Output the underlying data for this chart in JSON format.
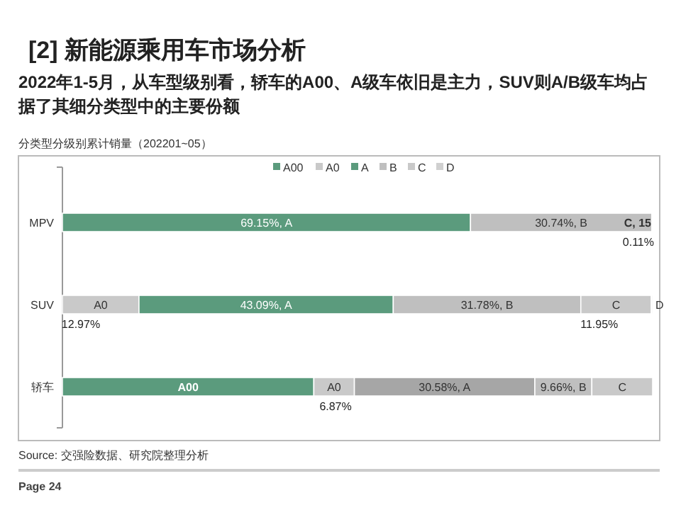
{
  "chart_data": {
    "type": "bar",
    "orientation": "horizontal",
    "stacked": true,
    "legend": "top",
    "title": "[2] 新能源乘用车市场分析",
    "subtitle": "2022年1-5月，从车型级别看，轿车的A00、A级车依旧是主力，SUV则A/B级车均占据了其细分类型中的主要份额",
    "annotations": [
      "分类型分级别累计销量（202201~05）",
      "Source: 交强险数据、研究院整理分析",
      "Page 24"
    ],
    "categories": [
      "MPV",
      "SUV",
      "轿车"
    ],
    "series": [
      {
        "name": "A00",
        "color": "#5b9b7d",
        "values": [
          0,
          0,
          42.6
        ],
        "value_labels": [
          null,
          null,
          "A00"
        ]
      },
      {
        "name": "A0",
        "color": "#c9c9c9",
        "values": [
          0,
          12.97,
          6.87
        ],
        "value_labels": [
          null,
          "A0\n12.97%",
          "A0\n6.87%"
        ]
      },
      {
        "name": "A",
        "color": "#5b9b7d",
        "colors": [
          "#5b9b7d",
          "#5b9b7d",
          "#a6a6a6"
        ],
        "values": [
          69.15,
          43.09,
          30.58
        ],
        "value_labels": [
          "69.15%, A",
          "43.09%, A",
          "30.58%, A"
        ]
      },
      {
        "name": "B",
        "color": "#bfbfbf",
        "values": [
          30.74,
          31.78,
          9.66
        ],
        "value_labels": [
          "30.74%, B",
          "31.78%, B",
          "9.66%, B"
        ]
      },
      {
        "name": "C",
        "color": "#c9c9c9",
        "colors": [
          "#8f8f8f",
          "#c9c9c9",
          "#c9c9c9"
        ],
        "values": [
          0.11,
          11.95,
          10.3
        ],
        "value_labels": [
          "C, 15\n0.11%",
          "C\n11.95%",
          "C"
        ]
      },
      {
        "name": "D",
        "color": "#d0d0d0",
        "values": [
          0,
          0.21,
          0
        ],
        "value_labels": [
          null,
          "D",
          null
        ]
      }
    ]
  }
}
